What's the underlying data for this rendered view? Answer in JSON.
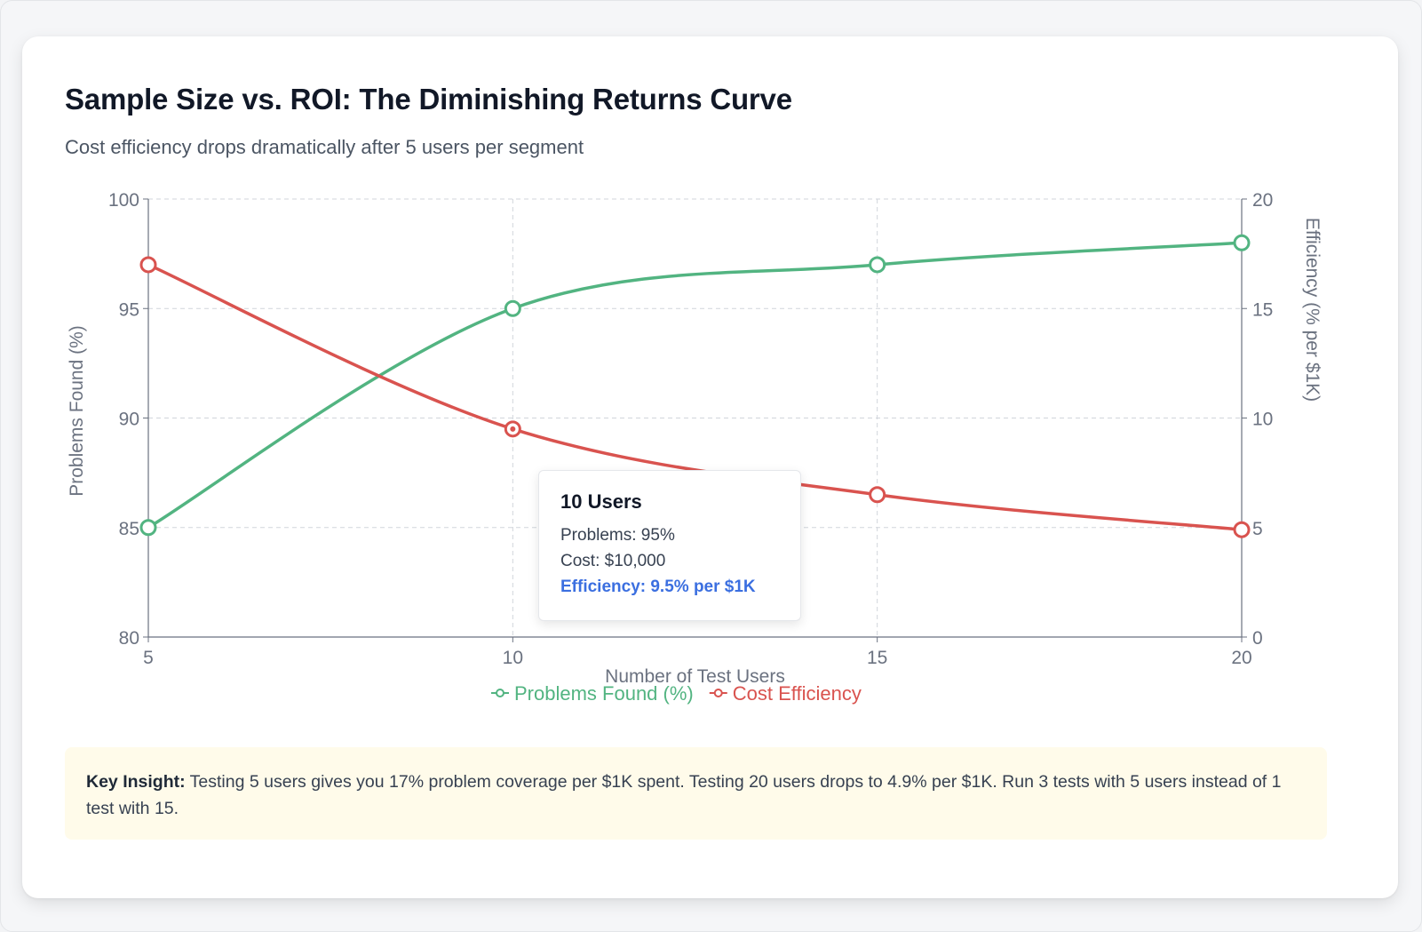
{
  "header": {
    "title": "Sample Size vs. ROI: The Diminishing Returns Curve",
    "subtitle": "Cost efficiency drops dramatically after 5 users per segment"
  },
  "chart_data": {
    "type": "line",
    "x": [
      5,
      10,
      15,
      20
    ],
    "x_tick_labels": [
      "5",
      "10",
      "15",
      "20"
    ],
    "xlabel": "Number of Test Users",
    "xlim": [
      5,
      20
    ],
    "y_left": {
      "label": "Problems Found (%)",
      "range": [
        80,
        100
      ],
      "ticks": [
        "80",
        "85",
        "90",
        "95",
        "100"
      ]
    },
    "y_right": {
      "label": "Efficiency (% per $1K)",
      "range": [
        0,
        20
      ],
      "ticks": [
        "0",
        "5",
        "10",
        "15",
        "20"
      ]
    },
    "series": [
      {
        "name": "Problems Found (%)",
        "axis": "left",
        "color": "#52b481",
        "values": [
          85,
          95,
          97,
          98
        ]
      },
      {
        "name": "Cost Efficiency",
        "axis": "right",
        "color": "#d9534f",
        "values": [
          17,
          9.5,
          6.5,
          4.9
        ]
      }
    ],
    "grid": true,
    "legend_position": "bottom"
  },
  "tooltip": {
    "title": "10 Users",
    "problems": "Problems: 95%",
    "cost": "Cost: $10,000",
    "efficiency": "Efficiency: 9.5% per $1K",
    "efficiency_color": "#3b6fe0"
  },
  "insight": {
    "label": "Key Insight:",
    "text": " Testing 5 users gives you 17% problem coverage per $1K spent. Testing 20 users drops to 4.9% per $1K. Run 3 tests with 5 users instead of 1 test with 15."
  }
}
